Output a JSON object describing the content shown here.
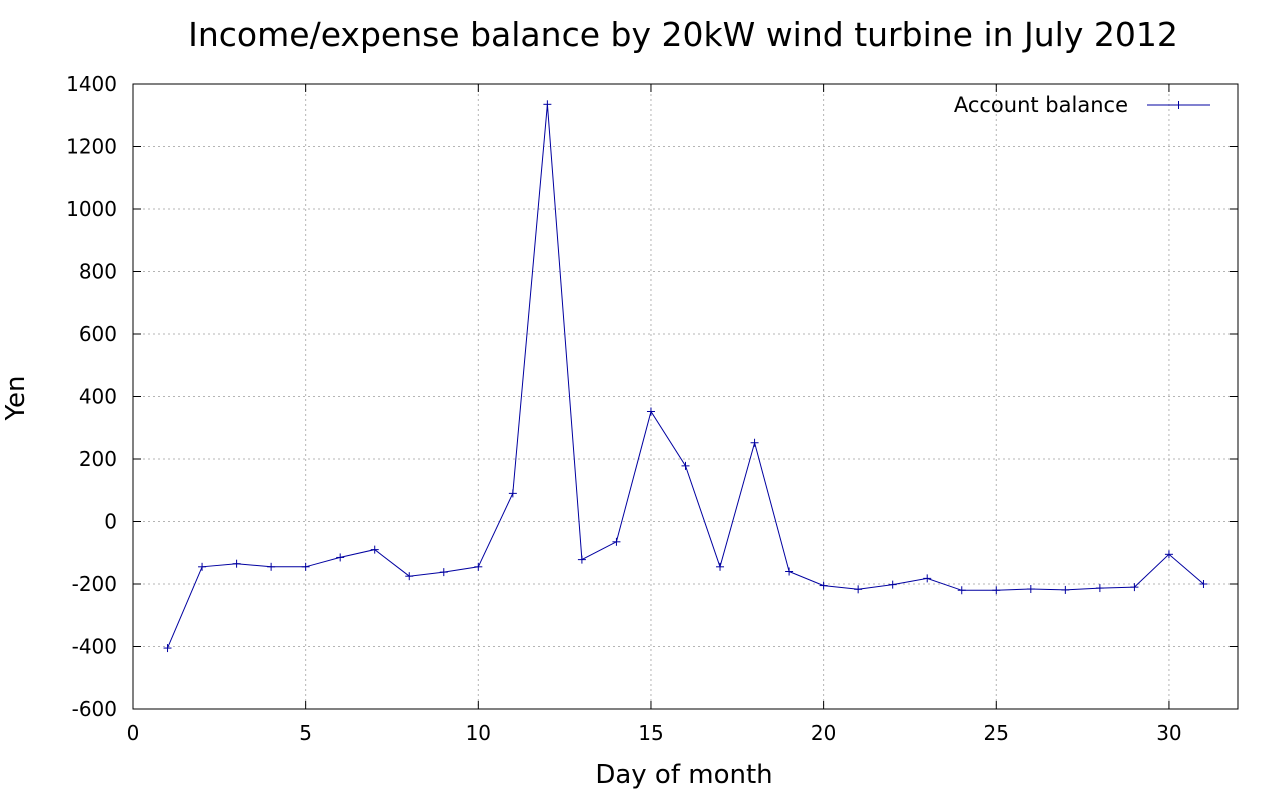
{
  "chart_data": {
    "type": "line",
    "title": "Income/expense balance by 20kW wind turbine in July 2012",
    "xlabel": "Day of month",
    "ylabel": "Yen",
    "xlim": [
      0,
      32
    ],
    "ylim": [
      -600,
      1400
    ],
    "x_ticks": [
      0,
      5,
      10,
      15,
      20,
      25,
      30
    ],
    "y_ticks": [
      -600,
      -400,
      -200,
      0,
      200,
      400,
      600,
      800,
      1000,
      1200,
      1400
    ],
    "grid": true,
    "legend_position": "top-right",
    "series": [
      {
        "name": "Account balance",
        "color": "#0000a0",
        "marker": "plus",
        "x": [
          1,
          2,
          3,
          4,
          5,
          6,
          7,
          8,
          9,
          10,
          11,
          12,
          13,
          14,
          15,
          16,
          17,
          18,
          19,
          20,
          21,
          22,
          23,
          24,
          25,
          26,
          27,
          28,
          29,
          30,
          31
        ],
        "y": [
          -405,
          -145,
          -135,
          -145,
          -145,
          -115,
          -90,
          -175,
          -162,
          -145,
          90,
          1335,
          -122,
          -65,
          352,
          178,
          -145,
          252,
          -160,
          -205,
          -217,
          -202,
          -182,
          -220,
          -220,
          -216,
          -219,
          -213,
          -210,
          -105,
          -200
        ]
      }
    ]
  }
}
